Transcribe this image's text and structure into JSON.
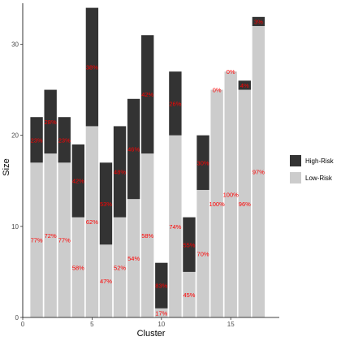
{
  "chart_data": {
    "type": "bar",
    "stacked": true,
    "xlabel": "Cluster",
    "ylabel": "Size",
    "xlim": [
      0,
      18.5
    ],
    "ylim": [
      0,
      34.5
    ],
    "x_ticks": [
      0,
      5,
      10,
      15
    ],
    "y_ticks": [
      0,
      10,
      20,
      30
    ],
    "x": [
      1,
      2,
      3,
      4,
      5,
      6,
      7,
      8,
      9,
      10,
      11,
      12,
      13,
      14,
      15,
      16,
      17
    ],
    "series": [
      {
        "name": "Low-Risk",
        "color": "#cccccc",
        "values": [
          17,
          18,
          17,
          11,
          21,
          8,
          11,
          13,
          18,
          1,
          20,
          5,
          14,
          25,
          27,
          25,
          32
        ],
        "labels": [
          "77%",
          "72%",
          "77%",
          "58%",
          "62%",
          "47%",
          "52%",
          "54%",
          "58%",
          "17%",
          "74%",
          "45%",
          "70%",
          "100%",
          "100%",
          "96%",
          "97%"
        ]
      },
      {
        "name": "High-Risk",
        "color": "#333333",
        "values": [
          5,
          7,
          5,
          8,
          13,
          9,
          10,
          11,
          13,
          5,
          7,
          6,
          6,
          0,
          0,
          1,
          1
        ],
        "labels": [
          "23%",
          "28%",
          "23%",
          "42%",
          "38%",
          "53%",
          "48%",
          "46%",
          "42%",
          "83%",
          "26%",
          "55%",
          "30%",
          "0%",
          "0%",
          "4%",
          "3%"
        ]
      }
    ],
    "label_color": "#ff0000",
    "legend": {
      "position": "right",
      "order": [
        "High-Risk",
        "Low-Risk"
      ]
    },
    "grid": false
  }
}
